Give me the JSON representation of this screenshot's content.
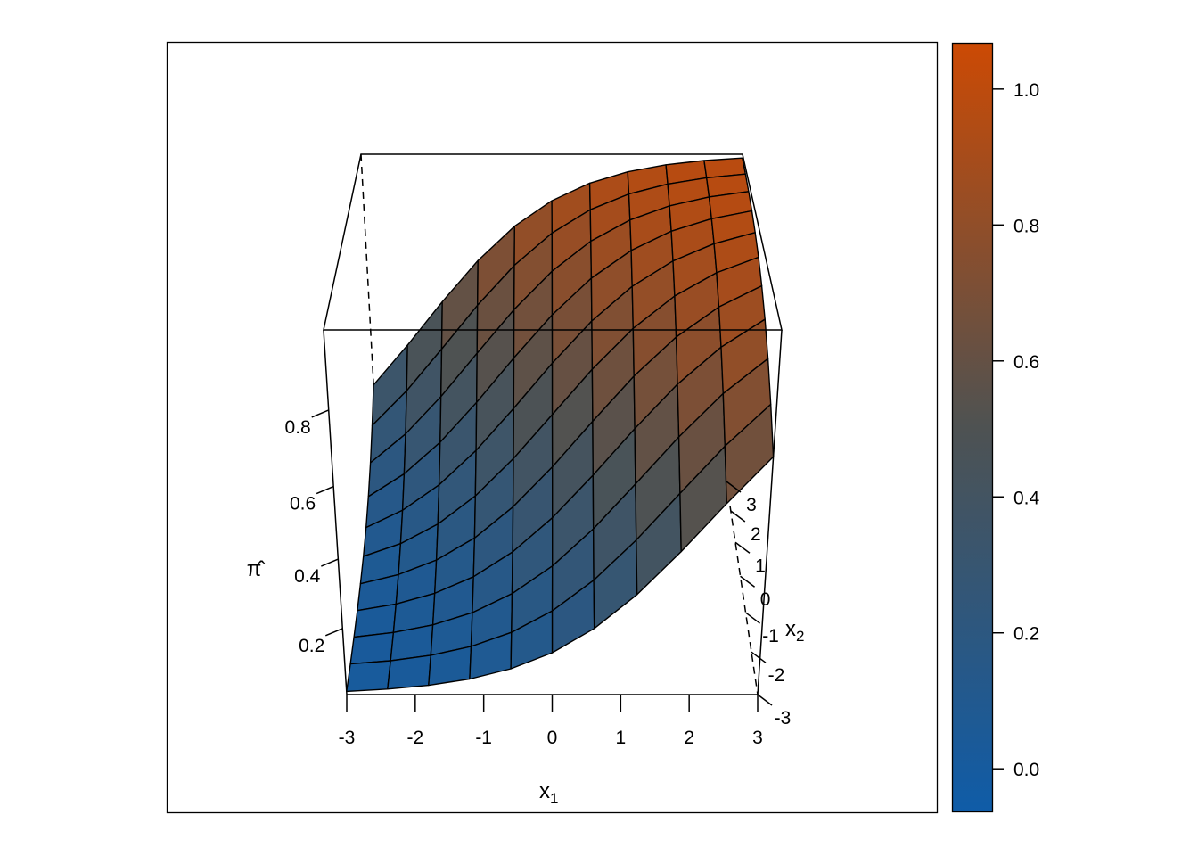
{
  "chart_data": {
    "type": "surface",
    "title": "",
    "xlabel": "x",
    "xlabel_sub": "1",
    "ylabel": "x",
    "ylabel_sub": "2",
    "zlabel": "π̂",
    "x1_grid": [
      -3,
      -2.4,
      -1.8,
      -1.2,
      -0.6,
      0,
      0.6,
      1.2,
      1.8,
      2.4,
      3
    ],
    "x2_grid": [
      -3,
      -2.4,
      -1.8,
      -1.2,
      -0.6,
      0,
      0.6,
      1.2,
      1.8,
      2.4,
      3
    ],
    "surface_model": {
      "link": "logistic",
      "intercept": 0,
      "b_x1": 0.89,
      "b_x2": 0.64
    },
    "zlim": [
      0,
      1
    ],
    "x1_ticks": [
      {
        "v": -3,
        "label": "-3"
      },
      {
        "v": -2,
        "label": "-2"
      },
      {
        "v": -1,
        "label": "-1"
      },
      {
        "v": 0,
        "label": "0"
      },
      {
        "v": 1,
        "label": "1"
      },
      {
        "v": 2,
        "label": "2"
      },
      {
        "v": 3,
        "label": "3"
      }
    ],
    "x2_ticks": [
      {
        "v": -3,
        "label": "-3"
      },
      {
        "v": -2,
        "label": "-2"
      },
      {
        "v": -1,
        "label": "-1"
      },
      {
        "v": 0,
        "label": "0"
      },
      {
        "v": 1,
        "label": "1"
      },
      {
        "v": 2,
        "label": "2"
      },
      {
        "v": 3,
        "label": "3"
      }
    ],
    "z_ticks": [
      {
        "v": 0.2,
        "label": "0.2"
      },
      {
        "v": 0.4,
        "label": "0.4"
      },
      {
        "v": 0.6,
        "label": "0.6"
      },
      {
        "v": 0.8,
        "label": "0.8"
      }
    ],
    "colorkey": {
      "range": [
        -0.064,
        1.068
      ],
      "ticks": [
        {
          "v": 0.0,
          "label": "0.0"
        },
        {
          "v": 0.2,
          "label": "0.2"
        },
        {
          "v": 0.4,
          "label": "0.4"
        },
        {
          "v": 0.6,
          "label": "0.6"
        },
        {
          "v": 0.8,
          "label": "0.8"
        },
        {
          "v": 1.0,
          "label": "1.0"
        }
      ],
      "colors": [
        "#0f5ca8",
        "#4e5252",
        "#cc4a04"
      ]
    }
  }
}
